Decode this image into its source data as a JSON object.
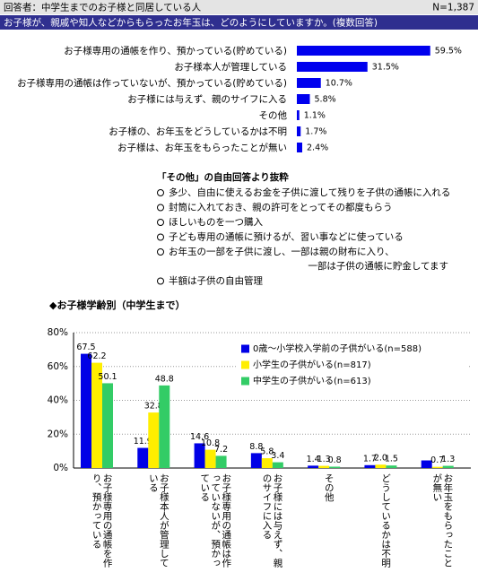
{
  "header": {
    "respondents": "回答者：中学生までのお子様と同居している人",
    "n": "N=1,387"
  },
  "question": "お子様が、親戚や知人などからもらったお年玉は、どのようにしていますか。(複数回答)",
  "chart_data": [
    {
      "type": "hbar",
      "color": "#0000ee",
      "categories": [
        "お子様専用の通帳を作り、預かっている(貯めている)",
        "お子様本人が管理している",
        "お子様専用の通帳は作っていないが、預かっている(貯めている)",
        "お子様には与えず、親のサイフに入る",
        "その他",
        "お子様の、お年玉をどうしているかは不明",
        "お子様は、お年玉をもらったことが無い"
      ],
      "values": [
        59.5,
        31.5,
        10.7,
        5.8,
        1.1,
        1.7,
        2.4
      ],
      "value_labels": [
        "59.5%",
        "31.5%",
        "10.7%",
        "5.8%",
        "1.1%",
        "1.7%",
        "2.4%"
      ]
    },
    {
      "type": "bar",
      "ylim": [
        0,
        80
      ],
      "yticks": [
        {
          "value": 0,
          "label": "0%"
        },
        {
          "value": 20,
          "label": "20%"
        },
        {
          "value": 40,
          "label": "40%"
        },
        {
          "value": 60,
          "label": "60%"
        },
        {
          "value": 80,
          "label": "80%"
        }
      ],
      "grid": true,
      "legend": "upper right",
      "categories": [
        "お子様専用の通帳を作り、預かっている",
        "お子様本人が管理している",
        "お子様専用の通帳は作っていないが、預かっている",
        "お子様には与えず、親のサイフに入る",
        "その他",
        "どうしているかは不明",
        "お年玉をもらったことが無い"
      ],
      "series": [
        {
          "name": "0歳～小学校入学前の子供がいる(n=588)",
          "color": "#0000e6",
          "values": [
            67.5,
            11.9,
            14.6,
            8.8,
            1.4,
            1.7,
            4.5
          ],
          "value_labels": [
            "67.5",
            "11.9",
            "14.6",
            "8.8",
            "1.4",
            "1.7",
            null
          ]
        },
        {
          "name": "小学生の子供がいる(n=817)",
          "color": "#ffee00",
          "values": [
            62.2,
            32.8,
            10.8,
            5.8,
            1.3,
            2.0,
            0.7
          ],
          "value_labels": [
            "62.2",
            "32.8",
            "10.8",
            "5.8",
            "1.3",
            "2.0",
            "0.7"
          ]
        },
        {
          "name": "中学生の子供がいる(n=613)",
          "color": "#33cc66",
          "values": [
            50.1,
            48.8,
            7.2,
            3.4,
            0.8,
            1.5,
            1.3
          ],
          "value_labels": [
            "50.1",
            "48.8",
            "7.2",
            "3.4",
            "0.8",
            "1.5",
            "1.3"
          ]
        }
      ]
    }
  ],
  "free_answers": {
    "title": "「その他」の自由回答より抜粋",
    "items": [
      [
        "多少、自由に使えるお金を子供に渡して残りを子供の通帳に入れる"
      ],
      [
        "封筒に入れておき、親の許可をとってその都度もらう"
      ],
      [
        "ほしいものを一つ購入"
      ],
      [
        "子ども専用の通帳に預けるが、習い事などに使っている"
      ],
      [
        "お年玉の一部を子供に渡し、一部は親の財布に入り、",
        "一部は子供の通帳に貯金してます"
      ],
      [
        "半額は子供の自由管理"
      ]
    ]
  },
  "section_title": "◆お子様学齢別（中学生まで）"
}
